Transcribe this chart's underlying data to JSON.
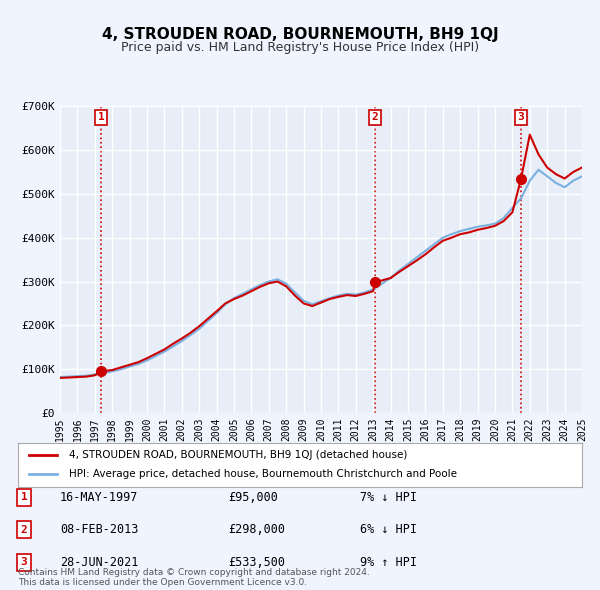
{
  "title": "4, STROUDEN ROAD, BOURNEMOUTH, BH9 1QJ",
  "subtitle": "Price paid vs. HM Land Registry's House Price Index (HPI)",
  "bg_color": "#f0f4ff",
  "plot_bg_color": "#e8eef8",
  "grid_color": "#ffffff",
  "ylabel": "",
  "xlabel": "",
  "ylim": [
    0,
    700000
  ],
  "yticks": [
    0,
    100000,
    200000,
    300000,
    400000,
    500000,
    600000,
    700000
  ],
  "ytick_labels": [
    "£0",
    "£100K",
    "£200K",
    "£300K",
    "£400K",
    "£500K",
    "£600K",
    "£700K"
  ],
  "sale_dates_num": [
    1997.37,
    2013.1,
    2021.49
  ],
  "sale_prices": [
    95000,
    298000,
    533500
  ],
  "sale_labels": [
    "1",
    "2",
    "3"
  ],
  "vline_color": "#cc0000",
  "vline_style": "dotted",
  "sale_dot_color": "#cc0000",
  "hpi_line_color": "#7ab0e0",
  "price_line_color": "#cc0000",
  "legend_entries": [
    "4, STROUDEN ROAD, BOURNEMOUTH, BH9 1QJ (detached house)",
    "HPI: Average price, detached house, Bournemouth Christchurch and Poole"
  ],
  "table_rows": [
    [
      "1",
      "16-MAY-1997",
      "£95,000",
      "7% ↓ HPI"
    ],
    [
      "2",
      "08-FEB-2013",
      "£298,000",
      "6% ↓ HPI"
    ],
    [
      "3",
      "28-JUN-2021",
      "£533,500",
      "9% ↑ HPI"
    ]
  ],
  "footer_text": "Contains HM Land Registry data © Crown copyright and database right 2024.\nThis data is licensed under the Open Government Licence v3.0.",
  "hpi_years": [
    1995,
    1995.5,
    1996,
    1996.5,
    1997,
    1997.5,
    1998,
    1998.5,
    1999,
    1999.5,
    2000,
    2000.5,
    2001,
    2001.5,
    2002,
    2002.5,
    2003,
    2003.5,
    2004,
    2004.5,
    2005,
    2005.5,
    2006,
    2006.5,
    2007,
    2007.5,
    2008,
    2008.5,
    2009,
    2009.5,
    2010,
    2010.5,
    2011,
    2011.5,
    2012,
    2012.5,
    2013,
    2013.5,
    2014,
    2014.5,
    2015,
    2015.5,
    2016,
    2016.5,
    2017,
    2017.5,
    2018,
    2018.5,
    2019,
    2019.5,
    2020,
    2020.5,
    2021,
    2021.5,
    2022,
    2022.5,
    2023,
    2023.5,
    2024,
    2024.5,
    2025
  ],
  "hpi_values": [
    82000,
    83000,
    84000,
    85000,
    88000,
    91000,
    95000,
    100000,
    106000,
    112000,
    120000,
    130000,
    140000,
    152000,
    164000,
    178000,
    192000,
    210000,
    228000,
    248000,
    262000,
    272000,
    282000,
    292000,
    300000,
    305000,
    295000,
    275000,
    256000,
    248000,
    255000,
    262000,
    268000,
    272000,
    270000,
    275000,
    282000,
    295000,
    308000,
    325000,
    340000,
    355000,
    370000,
    385000,
    400000,
    408000,
    415000,
    420000,
    425000,
    428000,
    432000,
    445000,
    468000,
    490000,
    530000,
    555000,
    540000,
    525000,
    515000,
    530000,
    540000
  ],
  "price_years": [
    1995,
    1995.5,
    1996,
    1996.5,
    1997,
    1997.37,
    1998,
    1998.5,
    1999,
    1999.5,
    2000,
    2000.5,
    2001,
    2001.5,
    2002,
    2002.5,
    2003,
    2003.5,
    2004,
    2004.5,
    2005,
    2005.5,
    2006,
    2006.5,
    2007,
    2007.5,
    2008,
    2008.5,
    2009,
    2009.5,
    2010,
    2010.5,
    2011,
    2011.5,
    2012,
    2012.5,
    2013,
    2013.1,
    2014,
    2014.5,
    2015,
    2015.5,
    2016,
    2016.5,
    2017,
    2017.5,
    2018,
    2018.5,
    2019,
    2019.5,
    2020,
    2020.5,
    2021,
    2021.49,
    2022,
    2022.5,
    2023,
    2023.5,
    2024,
    2024.5,
    2025
  ],
  "price_values": [
    80000,
    81000,
    82000,
    83000,
    86000,
    95000,
    98000,
    104000,
    110000,
    116000,
    125000,
    135000,
    145000,
    158000,
    170000,
    183000,
    198000,
    215000,
    232000,
    250000,
    260000,
    268000,
    278000,
    288000,
    296000,
    300000,
    289000,
    268000,
    250000,
    244000,
    252000,
    260000,
    265000,
    269000,
    267000,
    272000,
    278000,
    298000,
    308000,
    322000,
    335000,
    348000,
    362000,
    378000,
    393000,
    400000,
    408000,
    412000,
    418000,
    422000,
    427000,
    438000,
    458000,
    533500,
    635000,
    590000,
    560000,
    545000,
    535000,
    550000,
    560000
  ]
}
